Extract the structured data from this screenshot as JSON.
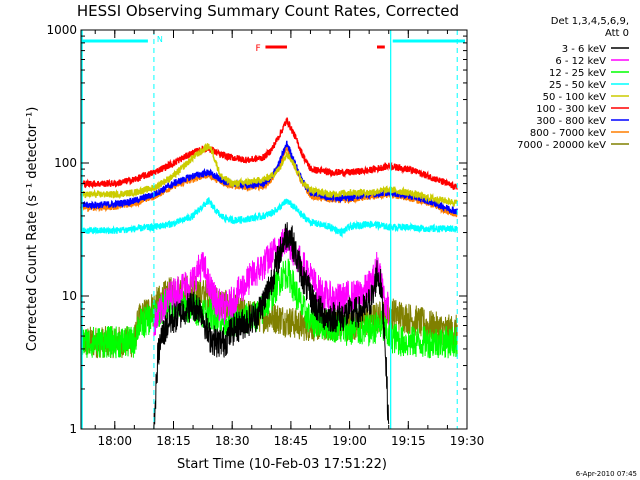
{
  "chart_data": {
    "type": "line",
    "title": "HESSI Observing Summary Count Rates, Corrected",
    "xlabel": "Start Time (10-Feb-03 17:51:22)",
    "ylabel": "Corrected Count Rate (s⁻¹ detector⁻¹)",
    "yscale": "log",
    "ylim": [
      1,
      1000
    ],
    "xlim": [
      "17:51:22",
      "19:30:00"
    ],
    "y_ticks": [
      "1",
      "10",
      "100",
      "1000"
    ],
    "x_ticks": [
      "18:00",
      "18:15",
      "18:30",
      "18:45",
      "19:00",
      "19:15",
      "19:30"
    ],
    "legend_position": "right",
    "legend_header": [
      "Det 1,3,4,5,6,9,",
      "Att 0"
    ],
    "footer_date": "6-Apr-2010 07:45",
    "annotations": {
      "night_label": "N",
      "flare_label": "F",
      "night_intervals": [
        [
          "18:10:00",
          "19:10:30"
        ]
      ],
      "saa_vlines": [
        "19:10:30",
        "19:27:30"
      ],
      "flare_bars": [
        [
          "18:38:30",
          "18:44:00"
        ],
        [
          "19:07:00",
          "19:09:00"
        ]
      ]
    },
    "series": [
      {
        "name": "3 - 6 keV",
        "color": "#000000",
        "x": [
          "18:10",
          "18:11",
          "18:12",
          "18:14",
          "18:16",
          "18:18",
          "18:20",
          "18:22",
          "18:24",
          "18:26",
          "18:28",
          "18:30",
          "18:32",
          "18:34",
          "18:36",
          "18:38",
          "18:40",
          "18:42",
          "18:43",
          "18:44",
          "18:45",
          "18:46",
          "18:48",
          "18:50",
          "18:52",
          "18:54",
          "18:56",
          "18:58",
          "19:00",
          "19:02",
          "19:04",
          "19:06",
          "19:07",
          "19:08",
          "19:09",
          "19:10"
        ],
        "values": [
          1.0,
          3.5,
          5.0,
          6.5,
          7.0,
          8.0,
          8.5,
          8.0,
          5.0,
          4.5,
          4.5,
          5.5,
          6.0,
          6.5,
          7.0,
          9.0,
          13.0,
          20.0,
          25.0,
          30.0,
          28.0,
          22.0,
          14.0,
          10.0,
          8.0,
          7.0,
          7.0,
          7.0,
          7.5,
          7.5,
          8.0,
          10.0,
          15.0,
          12.0,
          5.0,
          1.0
        ]
      },
      {
        "name": "6 - 12 keV",
        "color": "#ff00ff",
        "x": [
          "18:10",
          "18:12",
          "18:14",
          "18:16",
          "18:18",
          "18:20",
          "18:22",
          "18:23",
          "18:24",
          "18:26",
          "18:28",
          "18:30",
          "18:32",
          "18:34",
          "18:36",
          "18:38",
          "18:40",
          "18:42",
          "18:43",
          "18:44",
          "18:45",
          "18:46",
          "18:48",
          "18:50",
          "18:52",
          "18:54",
          "18:56",
          "18:58",
          "19:00",
          "19:02",
          "19:04",
          "19:06",
          "19:07",
          "19:08",
          "19:09",
          "19:10"
        ],
        "values": [
          6.0,
          8.0,
          10.0,
          11.0,
          12.0,
          13.0,
          17.0,
          16.0,
          12.0,
          9.0,
          8.0,
          9.0,
          11.0,
          13.0,
          15.0,
          17.0,
          20.0,
          24.0,
          25.0,
          26.0,
          24.0,
          21.0,
          17.0,
          14.0,
          11.0,
          10.0,
          9.5,
          9.5,
          10.0,
          10.0,
          11.0,
          13.0,
          17.0,
          14.0,
          9.0,
          8.0
        ]
      },
      {
        "name": "12 - 25 keV",
        "color": "#00ff00",
        "x": [
          "17:51:22",
          "18:05",
          "18:06",
          "18:08",
          "18:10",
          "18:12",
          "18:14",
          "18:16",
          "18:20",
          "18:24",
          "18:28",
          "18:32",
          "18:36",
          "18:38",
          "18:40",
          "18:42",
          "18:43",
          "18:44",
          "18:45",
          "18:46",
          "18:48",
          "18:50",
          "18:55",
          "19:00",
          "19:05",
          "19:08",
          "19:10",
          "19:14",
          "19:20",
          "19:25",
          "19:27:30"
        ],
        "values": [
          4.5,
          4.5,
          6.0,
          6.5,
          7.0,
          8.0,
          9.0,
          8.5,
          8.0,
          7.5,
          6.5,
          6.5,
          7.0,
          8.0,
          10.0,
          13.0,
          14.5,
          15.0,
          13.5,
          11.0,
          8.0,
          6.5,
          6.0,
          5.5,
          5.5,
          6.0,
          5.0,
          4.5,
          4.5,
          4.5,
          4.5
        ]
      },
      {
        "name": "25 - 50 keV",
        "color": "#00ffff",
        "x": [
          "17:51:22",
          "18:00",
          "18:05",
          "18:10",
          "18:15",
          "18:20",
          "18:22",
          "18:24",
          "18:25",
          "18:27",
          "18:30",
          "18:34",
          "18:38",
          "18:40",
          "18:42",
          "18:44",
          "18:46",
          "18:48",
          "18:50",
          "18:55",
          "18:58",
          "19:00",
          "19:05",
          "19:10",
          "19:15",
          "19:20",
          "19:27:30"
        ],
        "values": [
          31.0,
          31.0,
          32.0,
          33.0,
          35.0,
          40.0,
          46.0,
          52.0,
          47.0,
          40.0,
          37.0,
          38.0,
          40.0,
          42.0,
          46.0,
          52.0,
          46.0,
          40.0,
          36.0,
          33.0,
          30.0,
          33.0,
          35.0,
          33.0,
          33.0,
          32.0,
          32.0
        ]
      },
      {
        "name": "50 - 100 keV",
        "color": "#cccc00",
        "x": [
          "17:51:22",
          "18:00",
          "18:05",
          "18:10",
          "18:15",
          "18:20",
          "18:24",
          "18:25",
          "18:27",
          "18:30",
          "18:34",
          "18:38",
          "18:40",
          "18:42",
          "18:44",
          "18:46",
          "18:48",
          "18:50",
          "18:55",
          "19:00",
          "19:05",
          "19:10",
          "19:15",
          "19:20",
          "19:27:30"
        ],
        "values": [
          58.0,
          58.0,
          60.0,
          65.0,
          80.0,
          110.0,
          135.0,
          120.0,
          80.0,
          70.0,
          72.0,
          75.0,
          80.0,
          90.0,
          120.0,
          95.0,
          72.0,
          63.0,
          58.0,
          60.0,
          60.0,
          63.0,
          60.0,
          55.0,
          50.0
        ]
      },
      {
        "name": "100 - 300 keV",
        "color": "#ff0000",
        "x": [
          "17:51:22",
          "18:00",
          "18:05",
          "18:10",
          "18:15",
          "18:20",
          "18:24",
          "18:25",
          "18:27",
          "18:30",
          "18:34",
          "18:38",
          "18:40",
          "18:42",
          "18:44",
          "18:46",
          "18:48",
          "18:50",
          "18:55",
          "19:00",
          "19:05",
          "19:10",
          "19:15",
          "19:20",
          "19:27:30"
        ],
        "values": [
          70.0,
          70.0,
          75.0,
          85.0,
          100.0,
          120.0,
          130.0,
          125.0,
          115.0,
          110.0,
          105.0,
          110.0,
          125.0,
          160.0,
          210.0,
          160.0,
          115.0,
          90.0,
          85.0,
          85.0,
          88.0,
          95.0,
          90.0,
          80.0,
          65.0
        ]
      },
      {
        "name": "300 - 800 keV",
        "color": "#0000ff",
        "x": [
          "17:51:22",
          "18:00",
          "18:05",
          "18:10",
          "18:15",
          "18:20",
          "18:24",
          "18:27",
          "18:30",
          "18:34",
          "18:38",
          "18:40",
          "18:42",
          "18:44",
          "18:46",
          "18:48",
          "18:50",
          "18:55",
          "19:00",
          "19:05",
          "19:10",
          "19:15",
          "19:20",
          "19:27:30"
        ],
        "values": [
          48.0,
          49.0,
          52.0,
          58.0,
          70.0,
          80.0,
          85.0,
          75.0,
          70.0,
          68.0,
          70.0,
          78.0,
          100.0,
          140.0,
          100.0,
          72.0,
          60.0,
          55.0,
          55.0,
          58.0,
          60.0,
          57.0,
          52.0,
          43.0
        ]
      },
      {
        "name": "800 - 7000 keV",
        "color": "#ff7f00",
        "x": [
          "17:51:22",
          "18:00",
          "18:05",
          "18:10",
          "18:15",
          "18:20",
          "18:24",
          "18:27",
          "18:30",
          "18:34",
          "18:38",
          "18:40",
          "18:42",
          "18:44",
          "18:46",
          "18:48",
          "18:50",
          "18:55",
          "19:00",
          "19:05",
          "19:10",
          "19:15",
          "19:20",
          "19:27:30"
        ],
        "values": [
          46.0,
          47.0,
          50.0,
          56.0,
          67.0,
          76.0,
          82.0,
          72.0,
          68.0,
          66.0,
          67.0,
          75.0,
          95.0,
          130.0,
          95.0,
          70.0,
          57.0,
          53.0,
          53.0,
          56.0,
          58.0,
          55.0,
          50.0,
          41.0
        ]
      },
      {
        "name": "7000 - 20000 keV",
        "color": "#808000",
        "x": [
          "17:51:22",
          "18:05",
          "18:06",
          "18:08",
          "18:10",
          "18:12",
          "18:14",
          "18:16",
          "18:20",
          "18:24",
          "18:28",
          "18:32",
          "18:36",
          "18:40",
          "18:44",
          "18:48",
          "18:52",
          "18:56",
          "19:00",
          "19:04",
          "19:08",
          "19:10",
          "19:14",
          "19:20",
          "19:25",
          "19:27:30"
        ],
        "values": [
          4.5,
          4.5,
          6.5,
          7.5,
          8.5,
          9.5,
          10.5,
          11.0,
          11.0,
          10.0,
          8.5,
          7.5,
          7.0,
          7.0,
          6.5,
          6.0,
          6.0,
          6.0,
          6.0,
          6.5,
          7.0,
          7.5,
          7.0,
          6.0,
          5.5,
          5.5
        ]
      }
    ]
  }
}
